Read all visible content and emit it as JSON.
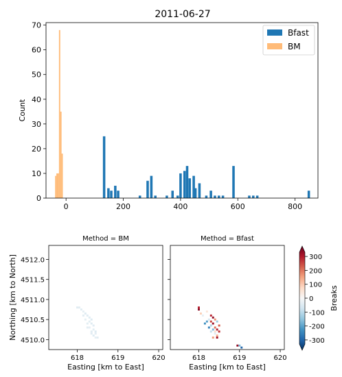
{
  "figure_title": "2011-06-27",
  "chart_data": [
    {
      "type": "bar",
      "title": "2011-06-27",
      "xlabel": "",
      "ylabel": "Count",
      "xlim": [
        -70,
        880
      ],
      "ylim": [
        0,
        71
      ],
      "xticks": [
        0,
        200,
        400,
        600,
        800
      ],
      "yticks": [
        0,
        10,
        20,
        30,
        40,
        50,
        60,
        70
      ],
      "legend_position": "top-right",
      "series": [
        {
          "name": "Bfast",
          "color": "#1f77b4",
          "bar_width": 8.5,
          "bars": [
            {
              "x": 133,
              "count": 25
            },
            {
              "x": 148,
              "count": 4
            },
            {
              "x": 158,
              "count": 3
            },
            {
              "x": 172,
              "count": 5
            },
            {
              "x": 182,
              "count": 3
            },
            {
              "x": 258,
              "count": 1
            },
            {
              "x": 285,
              "count": 7
            },
            {
              "x": 298,
              "count": 9
            },
            {
              "x": 312,
              "count": 1
            },
            {
              "x": 352,
              "count": 1
            },
            {
              "x": 372,
              "count": 3
            },
            {
              "x": 390,
              "count": 1
            },
            {
              "x": 400,
              "count": 10
            },
            {
              "x": 414,
              "count": 11
            },
            {
              "x": 423,
              "count": 13
            },
            {
              "x": 432,
              "count": 8
            },
            {
              "x": 446,
              "count": 9
            },
            {
              "x": 452,
              "count": 4
            },
            {
              "x": 466,
              "count": 6
            },
            {
              "x": 490,
              "count": 1
            },
            {
              "x": 506,
              "count": 3
            },
            {
              "x": 520,
              "count": 1
            },
            {
              "x": 534,
              "count": 1
            },
            {
              "x": 548,
              "count": 1
            },
            {
              "x": 585,
              "count": 13
            },
            {
              "x": 640,
              "count": 1
            },
            {
              "x": 654,
              "count": 1
            },
            {
              "x": 668,
              "count": 1
            },
            {
              "x": 848,
              "count": 3
            }
          ]
        },
        {
          "name": "BM",
          "color": "#ffbb78",
          "bar_width": 4.5,
          "bars": [
            {
              "x": -36,
              "count": 9
            },
            {
              "x": -31.5,
              "count": 10
            },
            {
              "x": -27,
              "count": 10
            },
            {
              "x": -22.5,
              "count": 68
            },
            {
              "x": -18,
              "count": 35
            },
            {
              "x": -13.5,
              "count": 18
            }
          ]
        }
      ]
    },
    {
      "type": "heatmap",
      "title": "Method = BM",
      "xlabel": "Easting [km to East]",
      "ylabel": "Northing [km to North]",
      "xlim": [
        617.3,
        620.1
      ],
      "ylim": [
        4509.75,
        4512.35
      ],
      "xticks": [
        618,
        619,
        620
      ],
      "yticks": [
        4510.0,
        4510.5,
        4511.0,
        4511.5,
        4512.0
      ],
      "value_label": "Breaks",
      "cells": [
        [
          618.0,
          4510.8,
          -40
        ],
        [
          618.05,
          4510.8,
          -35
        ],
        [
          618.15,
          4510.7,
          -30
        ],
        [
          618.2,
          4510.65,
          -45
        ],
        [
          618.25,
          4510.6,
          -40
        ],
        [
          618.15,
          4510.6,
          -38
        ],
        [
          618.3,
          4510.55,
          -42
        ],
        [
          618.2,
          4510.5,
          -30
        ],
        [
          618.3,
          4510.45,
          -36
        ],
        [
          618.35,
          4510.4,
          -44
        ],
        [
          618.25,
          4510.4,
          -34
        ],
        [
          618.4,
          4510.35,
          -40
        ],
        [
          618.3,
          4510.3,
          -32
        ],
        [
          618.4,
          4510.25,
          -38
        ],
        [
          618.45,
          4510.2,
          -46
        ],
        [
          618.35,
          4510.2,
          -40
        ],
        [
          618.45,
          4510.15,
          -35
        ],
        [
          618.4,
          4510.1,
          -42
        ],
        [
          618.5,
          4510.05,
          -36
        ],
        [
          618.45,
          4510.05,
          -30
        ],
        [
          618.35,
          4510.15,
          -40
        ],
        [
          618.25,
          4510.3,
          -34
        ],
        [
          618.35,
          4510.5,
          -45
        ],
        [
          618.1,
          4510.75,
          -38
        ]
      ]
    },
    {
      "type": "heatmap",
      "title": "Method = Bfast",
      "xlabel": "Easting [km to East]",
      "ylabel": "",
      "xlim": [
        617.3,
        620.1
      ],
      "ylim": [
        4509.75,
        4512.35
      ],
      "xticks": [
        618,
        619,
        620
      ],
      "yticks": [
        4510.0,
        4510.5,
        4511.0,
        4511.5,
        4512.0
      ],
      "value_label": "Breaks",
      "cells": [
        [
          618.0,
          4510.8,
          260
        ],
        [
          618.0,
          4510.75,
          300
        ],
        [
          618.05,
          4510.65,
          80
        ],
        [
          618.2,
          4510.7,
          40
        ],
        [
          618.3,
          4510.6,
          250
        ],
        [
          618.35,
          4510.55,
          290
        ],
        [
          618.4,
          4510.5,
          150
        ],
        [
          618.45,
          4510.45,
          -120
        ],
        [
          618.25,
          4510.5,
          -60
        ],
        [
          618.2,
          4510.45,
          -180
        ],
        [
          618.3,
          4510.45,
          220
        ],
        [
          618.35,
          4510.4,
          280
        ],
        [
          618.3,
          4510.35,
          -100
        ],
        [
          618.4,
          4510.3,
          180
        ],
        [
          618.45,
          4510.25,
          260
        ],
        [
          618.35,
          4510.25,
          -150
        ],
        [
          618.5,
          4510.35,
          200
        ],
        [
          618.25,
          4510.3,
          -220
        ],
        [
          618.4,
          4510.2,
          60
        ],
        [
          618.45,
          4510.1,
          120
        ],
        [
          618.35,
          4510.05,
          140
        ],
        [
          618.45,
          4510.05,
          280
        ],
        [
          618.4,
          4510.15,
          -40
        ],
        [
          618.5,
          4510.2,
          240
        ],
        [
          618.3,
          4510.2,
          -80
        ],
        [
          618.15,
          4510.4,
          -200
        ],
        [
          618.95,
          4509.85,
          290
        ],
        [
          619.0,
          4509.85,
          -150
        ],
        [
          619.05,
          4509.8,
          -260
        ],
        [
          618.1,
          4510.6,
          -30
        ]
      ]
    }
  ],
  "colorbar": {
    "label": "Breaks",
    "ticks": [
      -300,
      -200,
      -100,
      0,
      100,
      200,
      300
    ],
    "range": [
      -330,
      330
    ],
    "stops": [
      "#053061",
      "#2166ac",
      "#4393c3",
      "#92c5de",
      "#d1e5f0",
      "#f7f7f7",
      "#fddbc7",
      "#f4a582",
      "#d6604d",
      "#b2182b",
      "#67001f"
    ]
  },
  "colors": {
    "axis": "#000000",
    "background": "#ffffff"
  }
}
